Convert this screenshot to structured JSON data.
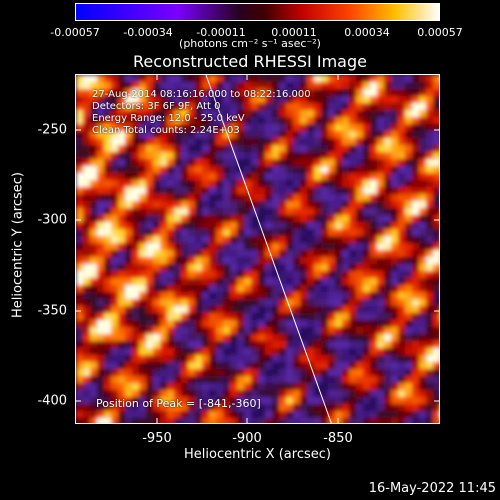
{
  "colorbar": {
    "ticks": [
      "-0.00057",
      "-0.00034",
      "-0.00011",
      "0.00011",
      "0.00034",
      "0.00057"
    ],
    "units": "(photons cm⁻² s⁻¹ asec⁻²)"
  },
  "title": "Reconstructed RHESSI Image",
  "info": {
    "time_range": "27-Aug-2014 08:16:16.000 to 08:22:16.000",
    "detectors": "Detectors: 3F 6F 9F, Att 0",
    "energy": "Energy Range: 12.0 - 25.0 keV",
    "clean": "Clean   Total counts: 2.24E+03"
  },
  "peak": "Position of Peak = [-841,-360]",
  "y_axis": {
    "label": "Heliocentric Y (arcsec)",
    "ticks": [
      "-250",
      "-300",
      "-350",
      "-400"
    ]
  },
  "x_axis": {
    "label": "Heliocentric X (arcsec)",
    "ticks": [
      "-950",
      "-900",
      "-850"
    ]
  },
  "timestamp": "16-May-2022 11:45"
}
